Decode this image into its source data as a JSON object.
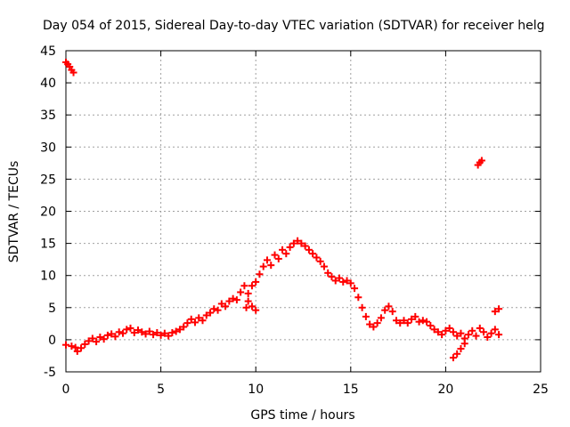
{
  "chart_data": {
    "type": "scatter",
    "title": "Day 054 of 2015, Sidereal Day-to-day VTEC variation (SDTVAR) for receiver helg",
    "xlabel": "GPS time / hours",
    "ylabel": "SDTVAR / TECUs",
    "xlim": [
      0,
      25
    ],
    "ylim": [
      -5,
      45
    ],
    "xticks": [
      0,
      5,
      10,
      15,
      20,
      25
    ],
    "yticks": [
      -5,
      0,
      5,
      10,
      15,
      20,
      25,
      30,
      35,
      40,
      45
    ],
    "grid": true,
    "marker": "+",
    "series": [
      {
        "name": "SDTVAR",
        "color": "#ff0000",
        "points": [
          [
            0.0,
            43.2
          ],
          [
            0.1,
            42.9
          ],
          [
            0.2,
            42.5
          ],
          [
            0.3,
            42.0
          ],
          [
            0.4,
            41.6
          ],
          [
            0.0,
            -0.8
          ],
          [
            0.3,
            -1.0
          ],
          [
            0.5,
            -1.2
          ],
          [
            0.6,
            -1.8
          ],
          [
            0.8,
            -1.3
          ],
          [
            1.0,
            -0.7
          ],
          [
            1.2,
            -0.2
          ],
          [
            1.4,
            0.2
          ],
          [
            1.6,
            -0.3
          ],
          [
            1.8,
            0.4
          ],
          [
            2.0,
            0.1
          ],
          [
            2.2,
            0.7
          ],
          [
            2.4,
            0.9
          ],
          [
            2.6,
            0.5
          ],
          [
            2.8,
            1.2
          ],
          [
            3.0,
            1.0
          ],
          [
            3.2,
            1.6
          ],
          [
            3.4,
            1.8
          ],
          [
            3.6,
            1.1
          ],
          [
            3.8,
            1.5
          ],
          [
            4.0,
            1.2
          ],
          [
            4.2,
            0.9
          ],
          [
            4.4,
            1.3
          ],
          [
            4.6,
            0.8
          ],
          [
            4.8,
            1.1
          ],
          [
            5.0,
            0.7
          ],
          [
            5.2,
            1.0
          ],
          [
            5.4,
            0.6
          ],
          [
            5.6,
            1.1
          ],
          [
            5.8,
            1.3
          ],
          [
            6.0,
            1.6
          ],
          [
            6.2,
            2.0
          ],
          [
            6.4,
            2.6
          ],
          [
            6.6,
            3.2
          ],
          [
            6.8,
            2.7
          ],
          [
            7.0,
            3.4
          ],
          [
            7.2,
            3.0
          ],
          [
            7.4,
            3.8
          ],
          [
            7.6,
            4.2
          ],
          [
            7.8,
            4.8
          ],
          [
            8.0,
            4.6
          ],
          [
            8.2,
            5.6
          ],
          [
            8.4,
            5.2
          ],
          [
            8.6,
            6.0
          ],
          [
            8.8,
            6.4
          ],
          [
            9.0,
            6.2
          ],
          [
            9.2,
            7.4
          ],
          [
            9.4,
            8.4
          ],
          [
            9.6,
            7.2
          ],
          [
            9.8,
            8.4
          ],
          [
            10.0,
            9.0
          ],
          [
            10.2,
            10.2
          ],
          [
            10.4,
            11.4
          ],
          [
            10.6,
            12.4
          ],
          [
            10.8,
            11.6
          ],
          [
            11.0,
            13.2
          ],
          [
            11.2,
            12.6
          ],
          [
            11.4,
            14.0
          ],
          [
            11.6,
            13.4
          ],
          [
            11.8,
            14.4
          ],
          [
            12.0,
            15.0
          ],
          [
            12.2,
            15.4
          ],
          [
            12.4,
            15.0
          ],
          [
            12.6,
            14.6
          ],
          [
            12.8,
            14.0
          ],
          [
            13.0,
            13.4
          ],
          [
            13.2,
            12.8
          ],
          [
            13.4,
            12.2
          ],
          [
            13.6,
            11.4
          ],
          [
            13.8,
            10.4
          ],
          [
            14.0,
            9.8
          ],
          [
            14.2,
            9.2
          ],
          [
            14.4,
            9.6
          ],
          [
            14.6,
            9.0
          ],
          [
            14.8,
            9.2
          ],
          [
            15.0,
            8.8
          ],
          [
            15.2,
            8.0
          ],
          [
            15.4,
            6.6
          ],
          [
            15.6,
            5.0
          ],
          [
            15.8,
            3.6
          ],
          [
            16.0,
            2.4
          ],
          [
            16.2,
            2.0
          ],
          [
            16.4,
            2.6
          ],
          [
            16.6,
            3.4
          ],
          [
            16.8,
            4.6
          ],
          [
            17.0,
            5.2
          ],
          [
            17.2,
            4.4
          ],
          [
            17.4,
            3.0
          ],
          [
            17.6,
            2.6
          ],
          [
            17.8,
            3.0
          ],
          [
            18.0,
            2.6
          ],
          [
            18.2,
            3.2
          ],
          [
            18.4,
            3.6
          ],
          [
            18.6,
            2.8
          ],
          [
            18.8,
            3.0
          ],
          [
            19.0,
            2.8
          ],
          [
            19.2,
            2.2
          ],
          [
            19.4,
            1.6
          ],
          [
            19.6,
            1.2
          ],
          [
            19.8,
            0.8
          ],
          [
            20.0,
            1.4
          ],
          [
            20.2,
            1.8
          ],
          [
            20.4,
            1.2
          ],
          [
            20.6,
            0.6
          ],
          [
            20.8,
            1.0
          ],
          [
            21.0,
            0.2
          ],
          [
            21.2,
            0.8
          ],
          [
            21.4,
            1.4
          ],
          [
            21.6,
            0.6
          ],
          [
            21.8,
            1.8
          ],
          [
            22.0,
            1.2
          ],
          [
            22.2,
            0.4
          ],
          [
            22.4,
            1.0
          ],
          [
            22.6,
            1.6
          ],
          [
            22.8,
            0.8
          ],
          [
            20.4,
            -2.8
          ],
          [
            20.6,
            -2.2
          ],
          [
            20.8,
            -1.4
          ],
          [
            21.0,
            -0.6
          ],
          [
            9.6,
            6.0
          ],
          [
            9.8,
            5.2
          ],
          [
            10.0,
            4.6
          ],
          [
            9.5,
            5.0
          ],
          [
            21.7,
            27.2
          ],
          [
            21.8,
            27.6
          ],
          [
            21.9,
            27.9
          ],
          [
            22.6,
            4.4
          ],
          [
            22.8,
            4.8
          ]
        ]
      }
    ]
  }
}
